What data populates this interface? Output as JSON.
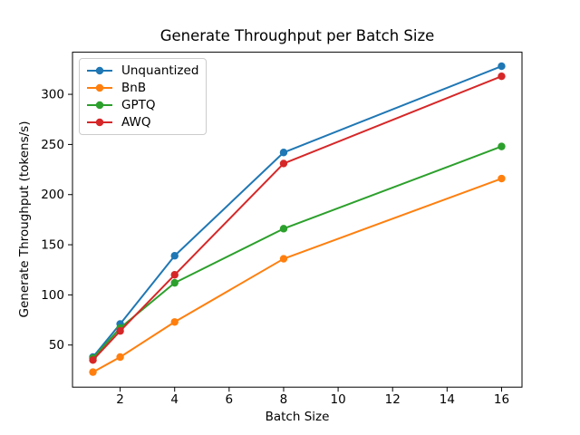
{
  "chart_data": {
    "type": "line",
    "title": "Generate Throughput per Batch Size",
    "xlabel": "Batch Size",
    "ylabel": "Generate Throughput (tokens/s)",
    "x": [
      1,
      2,
      4,
      8,
      16
    ],
    "series": [
      {
        "name": "Unquantized",
        "color": "#1f77b4",
        "values": [
          38,
          71,
          139,
          242,
          328
        ]
      },
      {
        "name": "BnB",
        "color": "#ff7f0e",
        "values": [
          23,
          38,
          73,
          136,
          216
        ]
      },
      {
        "name": "GPTQ",
        "color": "#2ca02c",
        "values": [
          37,
          67,
          112,
          166,
          248
        ]
      },
      {
        "name": "AWQ",
        "color": "#d62728",
        "values": [
          35,
          64,
          120,
          231,
          318
        ]
      }
    ],
    "xticks": [
      2,
      4,
      6,
      8,
      10,
      12,
      14,
      16
    ],
    "yticks": [
      50,
      100,
      150,
      200,
      250,
      300
    ],
    "xlim": [
      0.25,
      16.75
    ],
    "ylim": [
      8,
      342
    ],
    "grid": false,
    "legend_position": "upper-left",
    "marker": "circle",
    "background_color": "#ffffff",
    "spine_color": "#000000"
  }
}
